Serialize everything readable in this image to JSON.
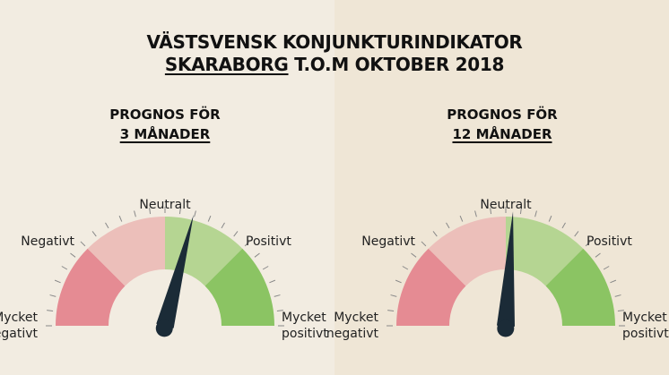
{
  "header": {
    "title_line1": "VÄSTSVENSK KONJUNKTURINDIKATOR",
    "title_region": "SKARABORG",
    "title_rest": " T.O.M OKTOBER 2018"
  },
  "gauges": [
    {
      "heading_line1": "PROGNOS FÖR",
      "heading_line2": "3 MÅNADER",
      "labels": {
        "neutral": "Neutralt",
        "negative": "Negativt",
        "positive": "Positivt",
        "very_negative_1": "Mycket",
        "very_negative_2": "negativt",
        "very_positive_1": "Mycket",
        "very_positive_2": "positivt"
      },
      "needle_value": 0.16
    },
    {
      "heading_line1": "PROGNOS FÖR",
      "heading_line2": "12 MÅNADER",
      "labels": {
        "neutral": "Neutralt",
        "negative": "Negativt",
        "positive": "Positivt",
        "very_negative_1": "Mycket",
        "very_negative_2": "negativt",
        "very_positive_1": "Mycket",
        "very_positive_2": "positivt"
      },
      "needle_value": 0.04
    }
  ],
  "colors": {
    "very_negative": "#e58b93",
    "negative": "#ecbfba",
    "positive": "#b5d592",
    "very_positive": "#8bc463",
    "needle": "#1b2b37",
    "tick": "#888888",
    "hub": "#efe7d9"
  }
}
